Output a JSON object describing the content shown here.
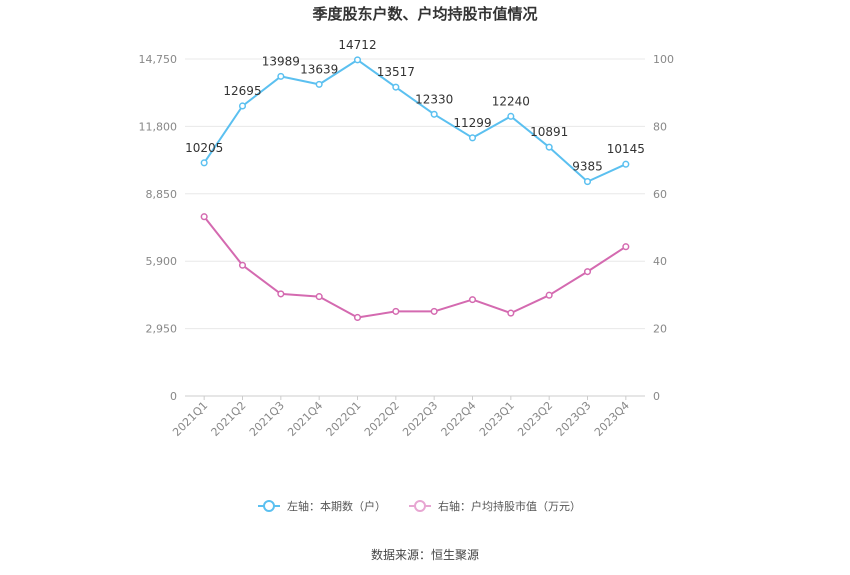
{
  "chart_data": {
    "type": "line",
    "title": "季度股东户数、户均持股市值情况",
    "categories": [
      "2021Q1",
      "2021Q2",
      "2021Q3",
      "2021Q4",
      "2022Q1",
      "2022Q2",
      "2022Q3",
      "2022Q4",
      "2023Q1",
      "2023Q2",
      "2023Q3",
      "2023Q4"
    ],
    "left_axis": {
      "ticks": [
        "0",
        "2,950",
        "5,900",
        "8,850",
        "11,800",
        "14,750"
      ],
      "ylim": [
        0,
        14750
      ]
    },
    "right_axis": {
      "ticks": [
        "0",
        "20",
        "40",
        "60",
        "80",
        "100"
      ],
      "ylim": [
        0,
        100
      ]
    },
    "series": [
      {
        "name": "左轴：本期数（户）",
        "axis": "left",
        "color": "#5bc0f0",
        "values": [
          10205,
          12695,
          13989,
          13639,
          14712,
          13517,
          12330,
          11299,
          12240,
          10891,
          9385,
          10145
        ],
        "labels": [
          "10205",
          "12695",
          "13989",
          "13639",
          "14712",
          "13517",
          "12330",
          "11299",
          "12240",
          "10891",
          "9385",
          "10145"
        ]
      },
      {
        "name": "右轴：户均持股市值（万元）",
        "axis": "right",
        "color": "#d46ab0",
        "values": [
          53.2,
          38.8,
          30.3,
          29.5,
          23.3,
          25.1,
          25.1,
          28.6,
          24.6,
          29.9,
          36.9,
          44.3
        ]
      }
    ],
    "grid": true,
    "legend": "bottom-center",
    "source": "数据来源：恒生聚源"
  }
}
